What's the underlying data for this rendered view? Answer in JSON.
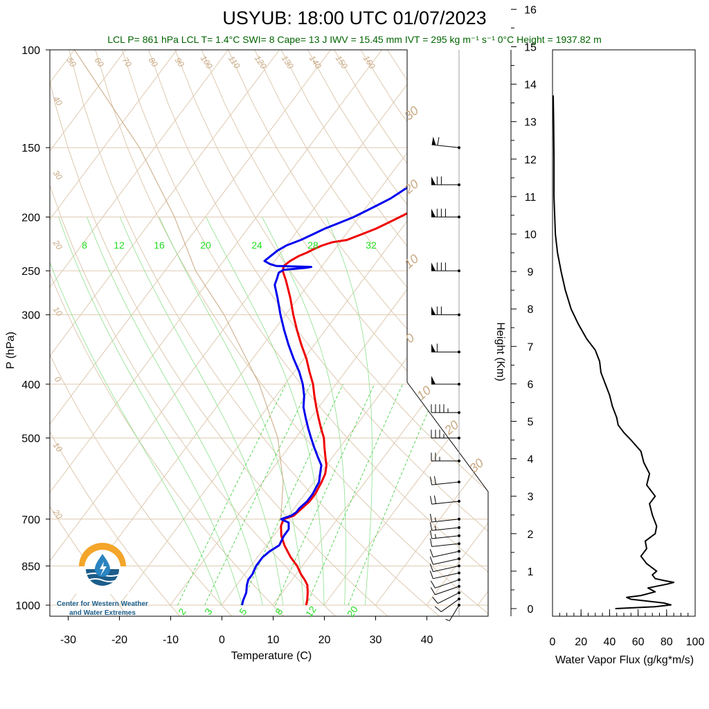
{
  "header": {
    "title": "USYUB: 18:00 UTC 01/07/2023",
    "stats": "LCL P= 861 hPa  LCL T= 1.4°C  SWI= 8  Cape= 13 J  IWV = 15.45 mm  IVT = 295 kg m⁻¹ s⁻¹  0°C Height = 1937.82 m"
  },
  "logo": {
    "line1": "Center for Western Weather",
    "line2": "and Water Extremes"
  },
  "chart_data": [
    {
      "type": "line",
      "name": "skew-T",
      "xlabel": "Temperature (C)",
      "ylabel": "P (hPa)",
      "x_ticks": [
        -30,
        -20,
        -10,
        0,
        10,
        20,
        30,
        40
      ],
      "xlim": [
        -33,
        52
      ],
      "y_ticks": [
        100,
        150,
        200,
        250,
        300,
        400,
        500,
        700,
        850,
        1000
      ],
      "ylim": [
        1000,
        100
      ],
      "y_scale": "log",
      "mixing_ratio_labels": [
        "8",
        "12",
        "16",
        "20",
        "24",
        "28",
        "32"
      ],
      "mixing_ratio_bottom_labels": [
        "2",
        "3",
        "5",
        "8",
        "12",
        "20"
      ],
      "dry_adiabat_labels": [
        "50",
        "60",
        "70",
        "80",
        "90",
        "100",
        "110",
        "120",
        "130",
        "140",
        "150",
        "160"
      ],
      "left_isotherm_labels": [
        "40",
        "30",
        "20",
        "10",
        "0",
        "10",
        "20"
      ],
      "right_isotherm_labels": [
        "30",
        "20",
        "10",
        "0",
        "10",
        "20",
        "30"
      ],
      "series": [
        {
          "name": "Temperature",
          "color": "#ee0000",
          "p": [
            1000,
            980,
            950,
            920,
            900,
            880,
            850,
            820,
            800,
            780,
            750,
            720,
            700,
            690,
            670,
            650,
            630,
            600,
            580,
            560,
            540,
            520,
            500,
            480,
            460,
            440,
            420,
            400,
            380,
            360,
            340,
            320,
            300,
            280,
            260,
            250,
            245,
            240,
            235,
            232,
            228,
            225,
            222,
            220,
            215,
            210,
            205,
            200,
            195,
            190,
            185,
            180,
            175,
            170,
            165,
            160,
            155,
            150
          ],
          "t": [
            16.5,
            16.0,
            15.0,
            13.8,
            12.5,
            11.0,
            9.0,
            6.5,
            5.0,
            3.5,
            1.5,
            0.0,
            -0.5,
            1.0,
            1.5,
            2.0,
            2.0,
            1.5,
            1.0,
            0.0,
            -1.5,
            -3.0,
            -4.5,
            -6.5,
            -8.5,
            -10.5,
            -12.5,
            -14.5,
            -17.0,
            -19.5,
            -22.5,
            -25.5,
            -28.5,
            -31.5,
            -35.0,
            -37.0,
            -37.5,
            -37.0,
            -36.0,
            -35.0,
            -34.0,
            -33.0,
            -31.5,
            -29.0,
            -27.0,
            -25.0,
            -23.5,
            -22.0,
            -20.5,
            -19.5,
            -18.5,
            -17.5,
            -17.0,
            -16.5,
            -16.0,
            -15.5,
            -15.0,
            -14.5
          ]
        },
        {
          "name": "Dewpoint",
          "color": "#0000ee",
          "p": [
            1000,
            980,
            950,
            920,
            900,
            880,
            850,
            820,
            800,
            780,
            750,
            730,
            710,
            700,
            690,
            680,
            670,
            650,
            630,
            600,
            580,
            560,
            540,
            520,
            500,
            480,
            460,
            440,
            420,
            400,
            380,
            360,
            340,
            320,
            300,
            280,
            265,
            258,
            252,
            249,
            247,
            246,
            245,
            243,
            240,
            235,
            230,
            225,
            220,
            215,
            210,
            205,
            200,
            195,
            190,
            185,
            180,
            175,
            170,
            165,
            160,
            155,
            150
          ],
          "t": [
            4.0,
            3.5,
            3.0,
            2.0,
            1.5,
            1.5,
            1.0,
            1.0,
            1.5,
            2.5,
            2.0,
            2.0,
            1.0,
            -1.0,
            0.5,
            1.0,
            1.0,
            1.5,
            1.5,
            1.0,
            0.0,
            -1.0,
            -3.0,
            -5.0,
            -7.0,
            -9.0,
            -11.0,
            -13.0,
            -14.5,
            -16.5,
            -19.0,
            -22.0,
            -25.0,
            -28.0,
            -31.0,
            -34.0,
            -36.5,
            -37.0,
            -37.5,
            -37.0,
            -33.0,
            -32.0,
            -39.0,
            -40.5,
            -42.0,
            -41.5,
            -41.0,
            -40.0,
            -38.0,
            -36.5,
            -35.0,
            -33.0,
            -31.0,
            -29.5,
            -28.0,
            -26.5,
            -25.5,
            -24.5,
            -23.5,
            -22.5,
            -22.0,
            -21.0,
            -20.0
          ]
        },
        {
          "name": "Parcel path",
          "color": "#c8a882",
          "p": [
            705,
            690,
            600,
            500,
            400,
            300,
            250,
            200,
            150,
            100
          ],
          "t": [
            -1.0,
            -1.5,
            -6.0,
            -13.5,
            -25.0,
            -42.0,
            -54.0,
            -66.0,
            -83.0,
            -110.0
          ]
        },
        {
          "name": "Wind barbs",
          "p": [
            1000,
            975,
            950,
            925,
            900,
            875,
            850,
            825,
            800,
            775,
            750,
            725,
            700,
            650,
            600,
            550,
            500,
            450,
            400,
            350,
            300,
            250,
            200,
            175,
            150
          ],
          "speed_kt": [
            5,
            10,
            10,
            10,
            10,
            10,
            10,
            10,
            10,
            10,
            15,
            15,
            15,
            20,
            20,
            25,
            35,
            45,
            50,
            60,
            70,
            80,
            80,
            70,
            60
          ],
          "direction_deg": [
            200,
            220,
            230,
            240,
            240,
            250,
            250,
            250,
            250,
            260,
            260,
            260,
            260,
            260,
            260,
            270,
            270,
            270,
            270,
            270,
            270,
            270,
            270,
            270,
            280
          ]
        }
      ]
    },
    {
      "type": "line",
      "name": "water-vapor-flux",
      "xlabel": "Water Vapor Flux (g/kg*m/s)",
      "ylabel": "Height (Km)",
      "x_ticks": [
        0,
        20,
        40,
        60,
        80,
        100
      ],
      "xlim": [
        0,
        100
      ],
      "y_ticks": [
        0,
        1,
        2,
        3,
        4,
        5,
        6,
        7,
        8,
        9,
        10,
        11,
        12,
        13,
        14,
        15,
        16
      ],
      "ylim": [
        0,
        16
      ],
      "series": [
        {
          "name": "Water Vapor Flux",
          "color": "#000000",
          "h": [
            0.0,
            0.05,
            0.1,
            0.15,
            0.25,
            0.3,
            0.35,
            0.45,
            0.55,
            0.65,
            0.7,
            0.75,
            0.8,
            0.9,
            1.0,
            1.2,
            1.4,
            1.6,
            1.8,
            2.0,
            2.2,
            2.5,
            2.8,
            3.0,
            3.3,
            3.6,
            3.9,
            4.2,
            4.5,
            4.7,
            4.9,
            5.1,
            5.4,
            5.7,
            6.0,
            6.3,
            6.6,
            6.9,
            7.2,
            7.6,
            8.0,
            8.5,
            9.0,
            9.5,
            10.0,
            10.5,
            11.0,
            12.0,
            13.0,
            13.7
          ],
          "v": [
            44.0,
            72.0,
            83.0,
            78.0,
            55.0,
            52.0,
            62.0,
            72.0,
            67.0,
            80.0,
            85.0,
            78.0,
            72.0,
            70.0,
            73.0,
            66.0,
            62.0,
            66.0,
            65.0,
            72.0,
            73.0,
            70.0,
            68.0,
            72.0,
            66.0,
            68.0,
            64.0,
            62.0,
            55.0,
            50.0,
            46.0,
            45.0,
            42.0,
            40.0,
            37.0,
            34.0,
            33.0,
            30.0,
            24.0,
            18.0,
            13.0,
            9.0,
            6.0,
            3.5,
            2.0,
            1.5,
            1.0,
            1.0,
            0.8,
            0.5
          ]
        }
      ]
    }
  ]
}
